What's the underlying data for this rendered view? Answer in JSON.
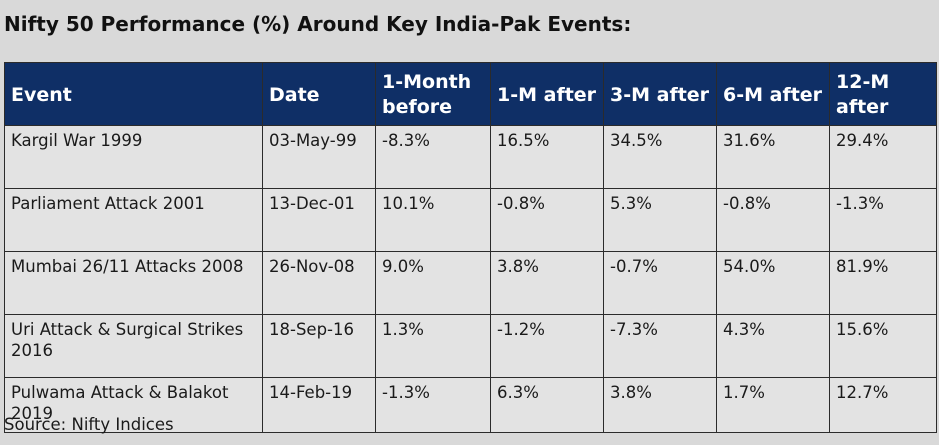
{
  "title": "Nifty 50 Performance (%) Around Key India-Pak Events:",
  "source": "Source: Nifty Indices",
  "colors": {
    "header_bg": "#0f2f66",
    "header_text": "#ffffff",
    "cell_bg": "#e3e3e3",
    "page_bg": "#d9d9d9"
  },
  "chart_data": {
    "type": "table",
    "title": "Nifty 50 Performance (%) Around Key India-Pak Events:",
    "columns": [
      "Event",
      "Date",
      "1-Month before",
      "1-M after",
      "3-M after",
      "6-M after",
      "12-M after"
    ],
    "rows": [
      [
        "Kargil War 1999",
        "03-May-99",
        "-8.3%",
        "16.5%",
        "34.5%",
        "31.6%",
        "29.4%"
      ],
      [
        "Parliament Attack 2001",
        "13-Dec-01",
        "10.1%",
        "-0.8%",
        "5.3%",
        "-0.8%",
        "-1.3%"
      ],
      [
        "Mumbai 26/11 Attacks 2008",
        "26-Nov-08",
        "9.0%",
        "3.8%",
        "-0.7%",
        "54.0%",
        "81.9%"
      ],
      [
        "Uri Attack & Surgical Strikes 2016",
        "18-Sep-16",
        "1.3%",
        "-1.2%",
        "-7.3%",
        "4.3%",
        "15.6%"
      ],
      [
        "Pulwama Attack & Balakot 2019",
        "14-Feb-19",
        "-1.3%",
        "6.3%",
        "3.8%",
        "1.7%",
        "12.7%"
      ]
    ],
    "source": "Source: Nifty Indices"
  }
}
